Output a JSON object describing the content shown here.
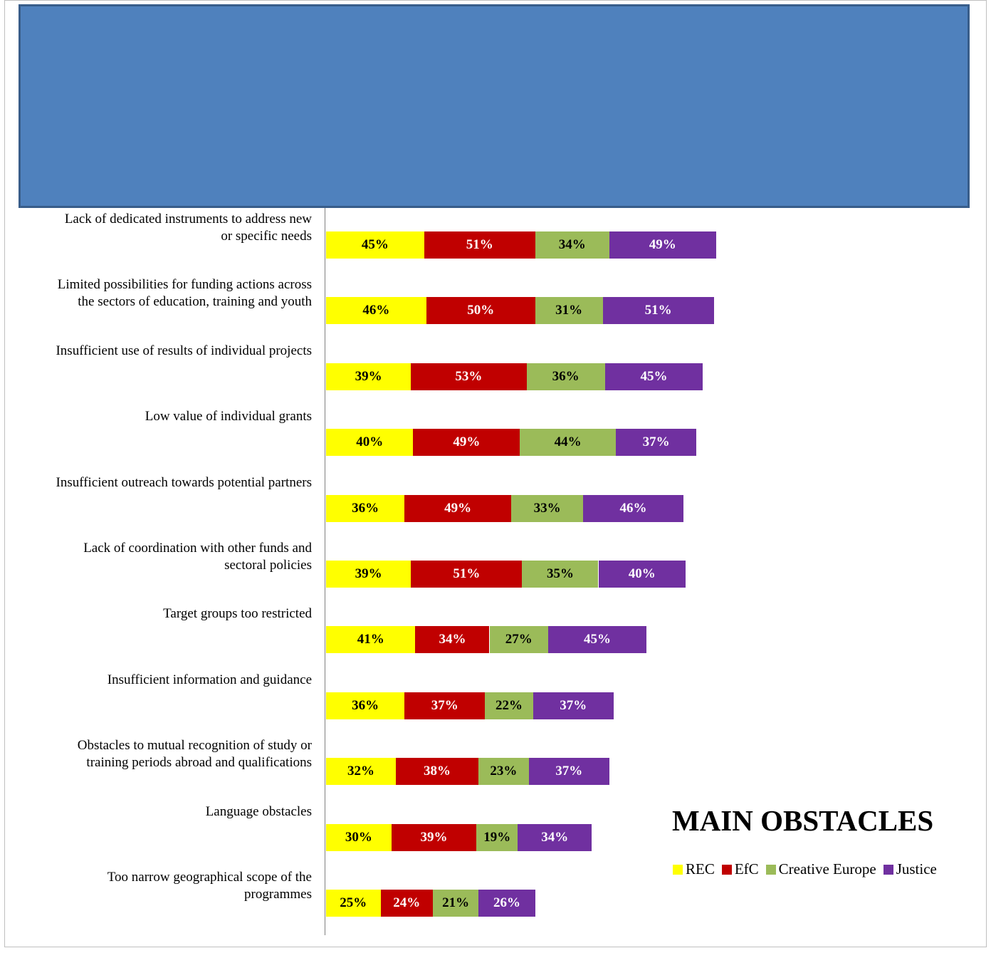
{
  "chart_data": {
    "type": "bar",
    "orientation": "horizontal",
    "stacked": true,
    "title": "MAIN OBSTACLES",
    "legend_position": "bottom-right",
    "value_format": "percent",
    "categories": [
      [
        "Lack of dedicated instruments to address new",
        "or specific needs"
      ],
      [
        "Limited possibilities for funding actions across",
        "the sectors of education, training and youth"
      ],
      [
        "Insufficient use of results of individual projects"
      ],
      [
        "Low value of individual grants"
      ],
      [
        "Insufficient outreach towards potential partners"
      ],
      [
        "Lack of coordination with other funds and",
        "sectoral policies"
      ],
      [
        "Target groups too restricted"
      ],
      [
        "Insufficient information and guidance"
      ],
      [
        "Obstacles to mutual recognition of study or",
        "training periods abroad and qualifications"
      ],
      [
        "Language obstacles"
      ],
      [
        "Too narrow geographical scope of the",
        "programmes"
      ]
    ],
    "series": [
      {
        "name": "REC",
        "color": "#ffff00",
        "label_color": "#000000",
        "values": [
          45,
          46,
          39,
          40,
          36,
          39,
          41,
          36,
          32,
          30,
          25
        ]
      },
      {
        "name": "EfC",
        "color": "#c00000",
        "label_color": "#ffffff",
        "values": [
          51,
          50,
          53,
          49,
          49,
          51,
          34,
          37,
          38,
          39,
          24
        ]
      },
      {
        "name": "Creative Europe",
        "color": "#9bbb59",
        "label_color": "#000000",
        "values": [
          34,
          31,
          36,
          44,
          33,
          35,
          27,
          22,
          23,
          19,
          21
        ]
      },
      {
        "name": "Justice",
        "color": "#7030a0",
        "label_color": "#ffffff",
        "values": [
          49,
          51,
          45,
          37,
          46,
          40,
          45,
          37,
          37,
          34,
          26
        ]
      }
    ]
  },
  "banner": {
    "color": "#4f81bd",
    "border_color": "#385d8a"
  }
}
